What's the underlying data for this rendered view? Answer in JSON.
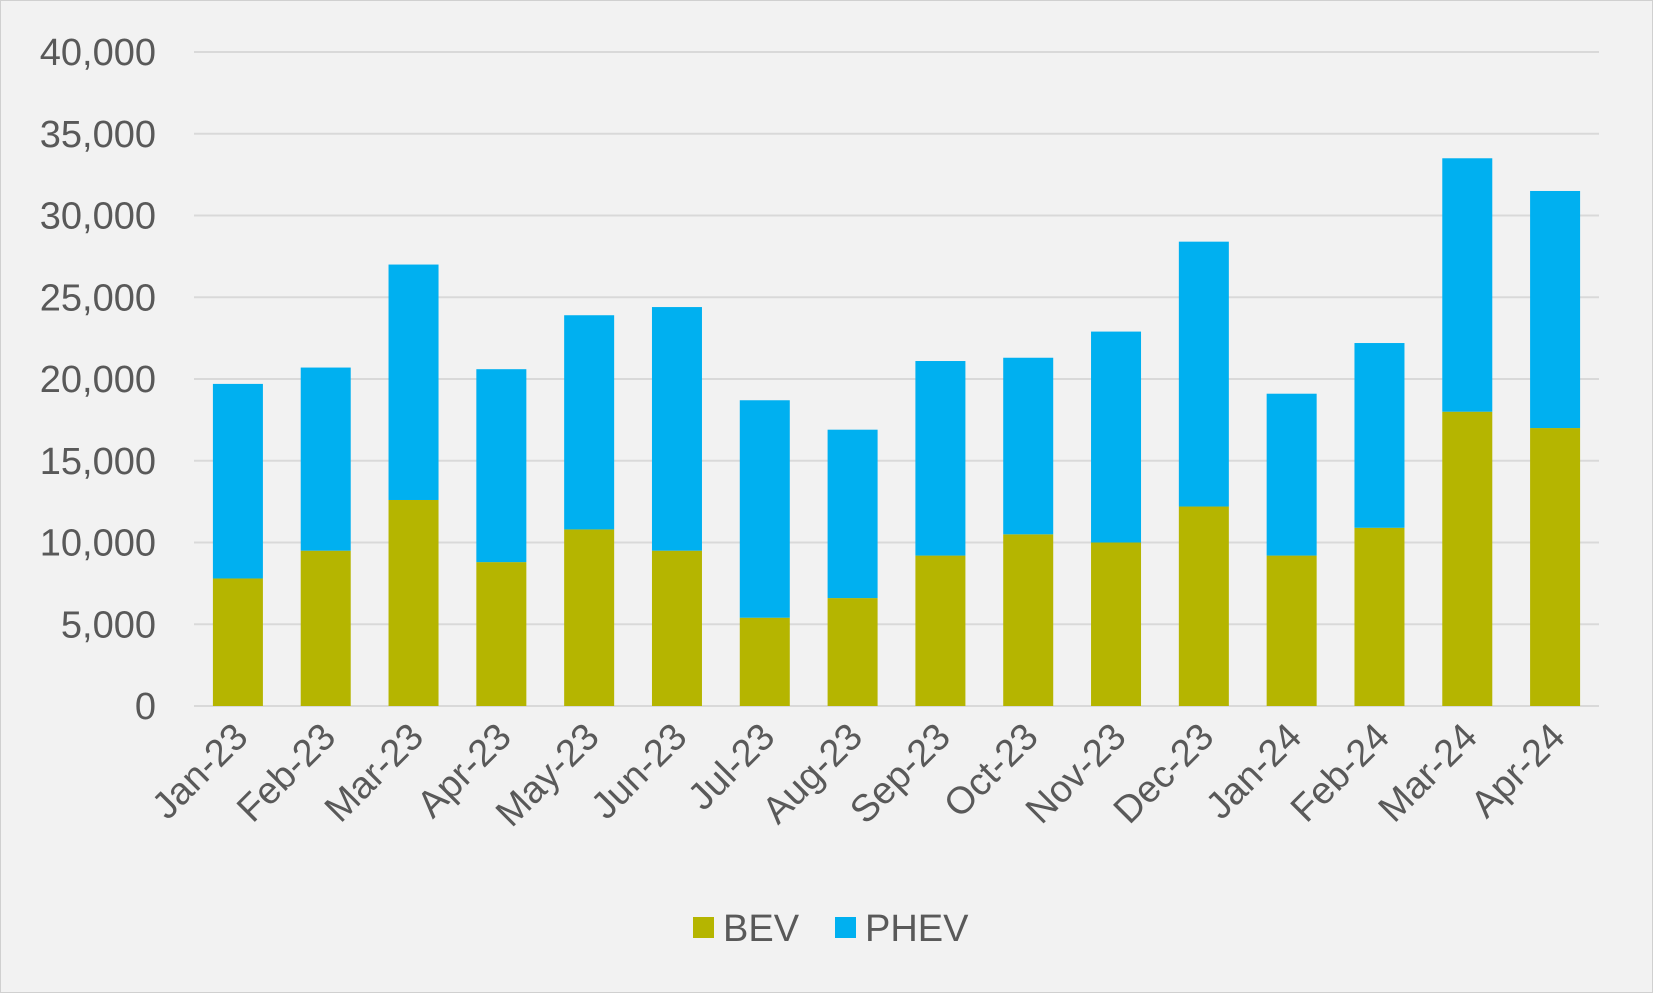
{
  "chart_data": {
    "type": "bar",
    "stacked": true,
    "categories": [
      "Jan-23",
      "Feb-23",
      "Mar-23",
      "Apr-23",
      "May-23",
      "Jun-23",
      "Jul-23",
      "Aug-23",
      "Sep-23",
      "Oct-23",
      "Nov-23",
      "Dec-23",
      "Jan-24",
      "Feb-24",
      "Mar-24",
      "Apr-24"
    ],
    "series": [
      {
        "name": "BEV",
        "color": "#b5b500",
        "values": [
          7800,
          9500,
          12600,
          8800,
          10800,
          9500,
          5400,
          6600,
          9200,
          10500,
          10000,
          12200,
          9200,
          10900,
          18000,
          17000
        ]
      },
      {
        "name": "PHEV",
        "color": "#00b0f0",
        "values": [
          11900,
          11200,
          14400,
          11800,
          13100,
          14900,
          13300,
          10300,
          11900,
          10800,
          12900,
          16200,
          9900,
          11300,
          15500,
          14500
        ]
      }
    ],
    "ylim": [
      0,
      40000
    ],
    "yticks": [
      "0",
      "5,000",
      "10,000",
      "15,000",
      "20,000",
      "25,000",
      "30,000",
      "35,000",
      "40,000"
    ],
    "ytick_values": [
      0,
      5000,
      10000,
      15000,
      20000,
      25000,
      30000,
      35000,
      40000
    ],
    "grid": true,
    "legend_position": "bottom",
    "title": "",
    "xlabel": "",
    "ylabel": ""
  },
  "colors": {
    "background": "#f2f2f2",
    "gridline": "#d9d9d9",
    "text": "#595959"
  }
}
